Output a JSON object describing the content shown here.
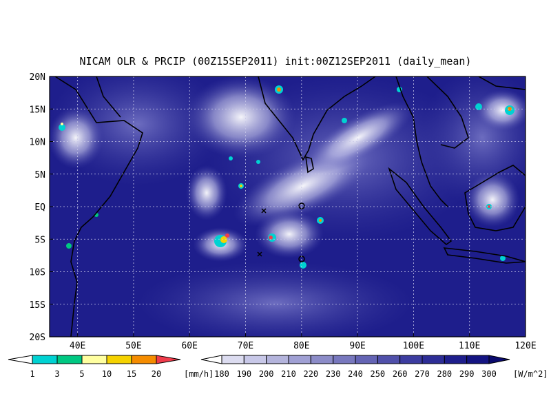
{
  "title": "NICAM OLR & PRCIP (00Z15SEP2011) init:00Z12SEP2011 (daily_mean)",
  "lat_labels": [
    "20N",
    "15N",
    "10N",
    "5N",
    "EQ",
    "5S",
    "10S",
    "15S",
    "20S"
  ],
  "lon_labels": [
    "40E",
    "50E",
    "60E",
    "70E",
    "80E",
    "90E",
    "100E",
    "110E",
    "120E"
  ],
  "precip_colorbar": {
    "ticks": [
      1,
      3,
      5,
      10,
      15,
      20
    ],
    "unit": "[mm/h]",
    "colors": [
      "#ffffff",
      "#00d2d2",
      "#00c882",
      "#ffffa0",
      "#f5d200",
      "#f58c00",
      "#f03c4b"
    ]
  },
  "olr_colorbar": {
    "ticks": [
      180,
      190,
      200,
      210,
      220,
      230,
      240,
      250,
      260,
      270,
      280,
      290,
      300
    ],
    "unit": "[W/m^2]",
    "colors": [
      "#ffffff",
      "#dcdcf0",
      "#c8c8e8",
      "#b4b4dc",
      "#a0a0d4",
      "#8c8cc8",
      "#7878be",
      "#6464b4",
      "#5050aa",
      "#3c3ca0",
      "#2d2d96",
      "#1e1e8c",
      "#141482",
      "#0a0a6e"
    ]
  }
}
